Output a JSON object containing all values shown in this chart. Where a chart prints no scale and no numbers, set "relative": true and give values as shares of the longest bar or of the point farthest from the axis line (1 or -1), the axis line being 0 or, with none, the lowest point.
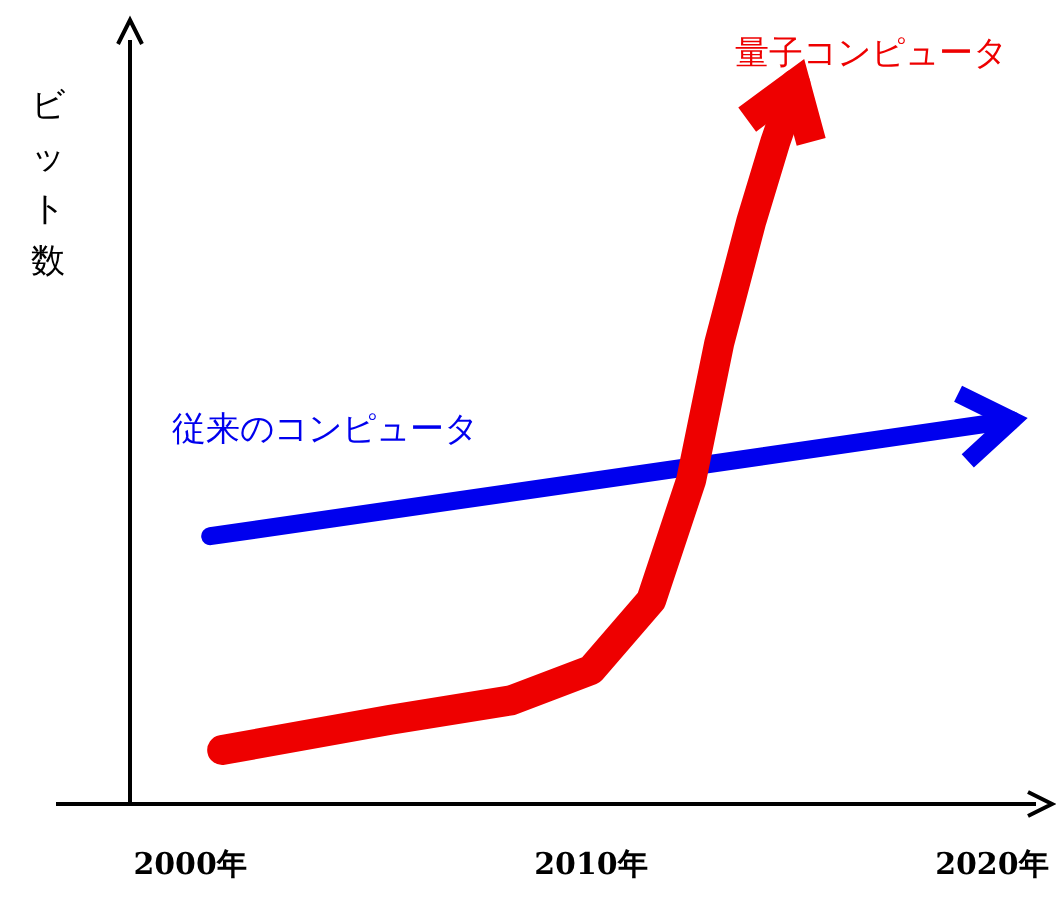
{
  "chart_data": {
    "type": "line",
    "relative": true,
    "ylabel": "ビット数",
    "xlim": [
      1998.5,
      2021.2
    ],
    "xticks": [
      {
        "value": 2000,
        "label": "2000年"
      },
      {
        "value": 2010,
        "label": "2010年"
      },
      {
        "value": 2020,
        "label": "2020年"
      }
    ],
    "series": [
      {
        "name": "従来のコンピュータ",
        "color": "#0000ee",
        "x": [
          2000.5,
          2020.5
        ],
        "values": [
          0.372,
          0.533
        ]
      },
      {
        "name": "量子コンピュータ",
        "color": "#ee0000",
        "x": [
          2000.8,
          2005,
          2008,
          2010,
          2011.5,
          2012.5,
          2013.2,
          2014,
          2014.6,
          2015.1
        ],
        "values": [
          0.075,
          0.117,
          0.144,
          0.186,
          0.283,
          0.45,
          0.64,
          0.81,
          0.92,
          1.0
        ]
      }
    ],
    "grid": false,
    "line_style": "solid"
  }
}
